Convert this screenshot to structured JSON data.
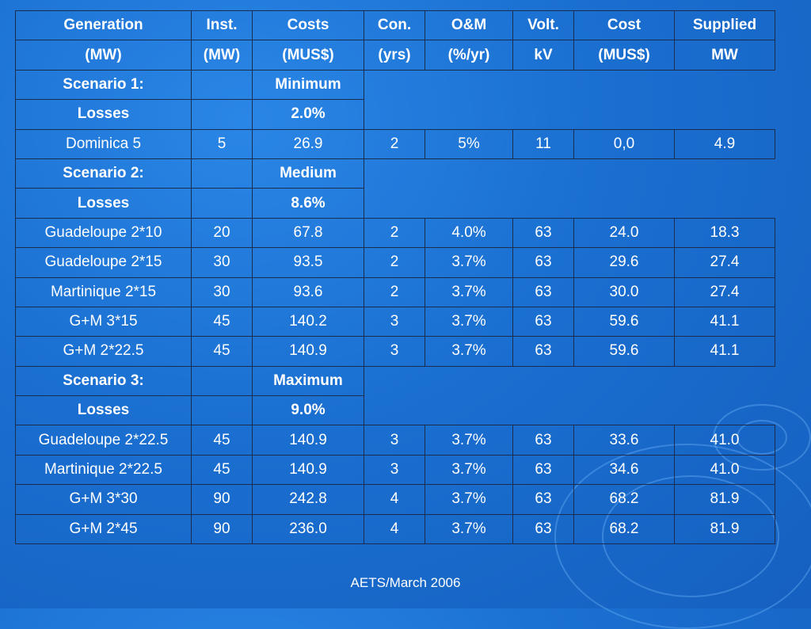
{
  "header_row1": [
    "Generation",
    "Inst.",
    "Costs",
    "Con.",
    "O&M",
    "Volt.",
    "Cost",
    "Supplied"
  ],
  "header_row2": [
    "(MW)",
    "(MW)",
    "(MUS$)",
    "(yrs)",
    "(%/yr)",
    "kV",
    "(MUS$)",
    "MW"
  ],
  "scenarios": [
    {
      "title": "Scenario 1:",
      "level": "Minimum",
      "losses_label": "Losses",
      "losses_value": "2.0%",
      "rows": [
        [
          "Dominica 5",
          "5",
          "26.9",
          "2",
          "5%",
          "11",
          "0,0",
          "4.9"
        ]
      ]
    },
    {
      "title": "Scenario 2:",
      "level": "Medium",
      "losses_label": "Losses",
      "losses_value": "8.6%",
      "rows": [
        [
          "Guadeloupe 2*10",
          "20",
          "67.8",
          "2",
          "4.0%",
          "63",
          "24.0",
          "18.3"
        ],
        [
          "Guadeloupe 2*15",
          "30",
          "93.5",
          "2",
          "3.7%",
          "63",
          "29.6",
          "27.4"
        ],
        [
          "Martinique 2*15",
          "30",
          "93.6",
          "2",
          "3.7%",
          "63",
          "30.0",
          "27.4"
        ],
        [
          "G+M 3*15",
          "45",
          "140.2",
          "3",
          "3.7%",
          "63",
          "59.6",
          "41.1"
        ],
        [
          "G+M 2*22.5",
          "45",
          "140.9",
          "3",
          "3.7%",
          "63",
          "59.6",
          "41.1"
        ]
      ]
    },
    {
      "title": "Scenario 3:",
      "level": "Maximum",
      "losses_label": "Losses",
      "losses_value": "9.0%",
      "rows": [
        [
          "Guadeloupe 2*22.5",
          "45",
          "140.9",
          "3",
          "3.7%",
          "63",
          "33.6",
          "41.0"
        ],
        [
          "Martinique 2*22.5",
          "45",
          "140.9",
          "3",
          "3.7%",
          "63",
          "34.6",
          "41.0"
        ],
        [
          "G+M 3*30",
          "90",
          "242.8",
          "4",
          "3.7%",
          "63",
          "68.2",
          "81.9"
        ],
        [
          "G+M 2*45",
          "90",
          "236.0",
          "4",
          "3.7%",
          "63",
          "68.2",
          "81.9"
        ]
      ]
    }
  ],
  "footer": "AETS/March  2006"
}
